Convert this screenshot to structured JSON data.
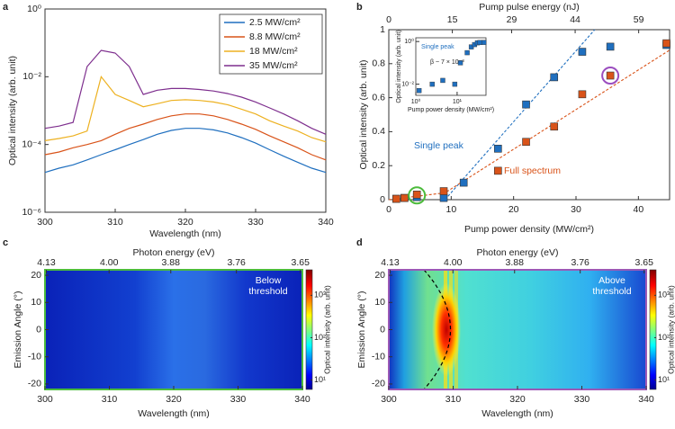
{
  "chart_data": [
    {
      "panel": "a",
      "type": "line",
      "xlabel": "Wavelength (nm)",
      "ylabel": "Optical intensity (arb. unit)",
      "x": [
        300,
        302,
        304,
        306,
        308,
        310,
        312,
        314,
        316,
        318,
        320,
        322,
        324,
        326,
        328,
        330,
        332,
        334,
        336,
        338,
        340
      ],
      "series": [
        {
          "name": "2.5 MW/cm²",
          "color": "#1f6fbf",
          "values": [
            1.5e-05,
            2e-05,
            2.5e-05,
            3.5e-05,
            5e-05,
            7e-05,
            0.0001,
            0.00014,
            0.0002,
            0.00026,
            0.0003,
            0.0003,
            0.00027,
            0.00022,
            0.00016,
            0.00011,
            7e-05,
            4.5e-05,
            3e-05,
            2e-05,
            1.5e-05
          ]
        },
        {
          "name": "8.8 MW/cm²",
          "color": "#d95319",
          "values": [
            5e-05,
            6e-05,
            8e-05,
            0.0001,
            0.00013,
            0.0002,
            0.0003,
            0.0004,
            0.00055,
            0.0007,
            0.0008,
            0.0008,
            0.0007,
            0.00055,
            0.0004,
            0.00028,
            0.00018,
            0.00012,
            8e-05,
            5e-05,
            3.5e-05
          ]
        },
        {
          "name": "18 MW/cm²",
          "color": "#edb120",
          "values": [
            0.00013,
            0.00015,
            0.00018,
            0.00025,
            0.01,
            0.003,
            0.002,
            0.0013,
            0.0016,
            0.002,
            0.0021,
            0.002,
            0.0018,
            0.0015,
            0.0011,
            0.0008,
            0.0005,
            0.00035,
            0.00025,
            0.00016,
            0.00012
          ]
        },
        {
          "name": "35 MW/cm²",
          "color": "#7e2f8e",
          "values": [
            0.0003,
            0.00035,
            0.00045,
            0.02,
            0.06,
            0.05,
            0.02,
            0.003,
            0.004,
            0.0045,
            0.0045,
            0.0042,
            0.0038,
            0.0032,
            0.0025,
            0.0018,
            0.0012,
            0.0008,
            0.0005,
            0.0003,
            0.0002
          ]
        }
      ],
      "xlim": [
        300,
        340
      ],
      "xticks": [
        300,
        310,
        320,
        330,
        340
      ],
      "ylim": [
        1e-06,
        1
      ],
      "log_y": true,
      "yticks": [
        {
          "value": 1e-06,
          "label": "10⁻⁶"
        },
        {
          "value": 0.0001,
          "label": "10⁻⁴"
        },
        {
          "value": 0.01,
          "label": "10⁻²"
        },
        {
          "value": 1,
          "label": "10⁰"
        }
      ],
      "legend": "upper-right"
    },
    {
      "panel": "b",
      "type": "scatter",
      "xlabel": "Pump power density (MW/cm²)",
      "ylabel": "Optical intensity (arb. unit)",
      "x2label": "Pump pulse energy (nJ)",
      "x": [
        1.2,
        2.5,
        4.5,
        8.8,
        12,
        17.5,
        22,
        26.5,
        31,
        35.5,
        44.5
      ],
      "series": [
        {
          "name": "Single peak",
          "color": "#1f6fbf",
          "values": [
            0.005,
            0.01,
            0.015,
            0.01,
            0.1,
            0.3,
            0.56,
            0.72,
            0.87,
            0.9,
            0.91
          ]
        },
        {
          "name": "Full spectrum",
          "color": "#d95319",
          "values": [
            0.005,
            0.01,
            0.03,
            0.05,
            null,
            0.17,
            0.34,
            0.43,
            0.62,
            0.73,
            0.92
          ]
        }
      ],
      "fits": [
        {
          "color": "#1f6fbf",
          "x": [
            9,
            33
          ],
          "values": [
            0,
            1
          ]
        },
        {
          "color": "#d95319",
          "x": [
            0,
            9,
            45
          ],
          "values": [
            0,
            0.04,
            0.88
          ]
        }
      ],
      "highlights": [
        {
          "x": 4.5,
          "y": 0.025,
          "color": "#4cbb3c"
        },
        {
          "x": 35.5,
          "y": 0.73,
          "color": "#9b4dbf"
        }
      ],
      "xlim": [
        0,
        45
      ],
      "xticks": [
        0,
        10,
        20,
        30,
        40
      ],
      "x2lim": [
        0,
        66.3
      ],
      "x2ticks": [
        0,
        15,
        29,
        44,
        59
      ],
      "ylim": [
        0,
        1
      ],
      "yticks": [
        0,
        0.2,
        0.4,
        0.6,
        0.8,
        1
      ],
      "inset": {
        "annotation": "β ~ 7 × 10⁻³",
        "xlabel": "Pump power density (MW/cm²)",
        "ylabel": "Optical intensity (arb. unit)",
        "xlim": [
          1,
          50
        ],
        "xticks": [
          {
            "value": 1,
            "label": "10⁰"
          },
          {
            "value": 10,
            "label": "10¹"
          }
        ],
        "ylim": [
          0.003,
          1.5
        ],
        "yticks": [
          {
            "value": 0.01,
            "label": "10⁻²"
          },
          {
            "value": 1,
            "label": "10⁰"
          }
        ]
      }
    },
    {
      "panel": "c",
      "type": "heatmap",
      "xlabel": "Wavelength (nm)",
      "ylabel": "Emission Angle (°)",
      "x2label": "Photon energy (eV)",
      "annotation": [
        "Below",
        "threshold"
      ],
      "frame_color": "#4cbb3c",
      "xlim": [
        300,
        340
      ],
      "xticks": [
        300,
        310,
        320,
        330,
        340
      ],
      "x2ticks": [
        4.13,
        {
          "value": 4,
          "label": "4.00"
        },
        3.88,
        3.76,
        3.65
      ],
      "ylim": [
        -22,
        22
      ],
      "yticks": [
        -20,
        -10,
        0,
        10,
        20
      ],
      "colorbar": {
        "label": "Optical intensity (arb. unit)",
        "lim": [
          6,
          4000
        ],
        "ticks": [
          {
            "value": 10,
            "label": "10¹"
          },
          {
            "value": 100,
            "label": "10²"
          },
          {
            "value": 1000,
            "label": "10³"
          }
        ]
      }
    },
    {
      "panel": "d",
      "type": "heatmap",
      "xlabel": "Wavelength (nm)",
      "ylabel": "Emission Angle (°)",
      "x2label": "Photon energy (eV)",
      "annotation": [
        "Above",
        "threshold"
      ],
      "frame_color": "#9b59b6",
      "xlim": [
        300,
        340
      ],
      "xticks": [
        300,
        310,
        320,
        330,
        340
      ],
      "x2ticks": [
        4.13,
        {
          "value": 4,
          "label": "4.00"
        },
        3.88,
        3.76,
        3.65
      ],
      "ylim": [
        -22,
        22
      ],
      "yticks": [
        -20,
        -10,
        0,
        10,
        20
      ],
      "colorbar": {
        "label": "Optical intensity (arb. unit)",
        "lim": [
          6,
          4000
        ],
        "ticks": [
          {
            "value": 10,
            "label": "10¹"
          },
          {
            "value": 100,
            "label": "10²"
          },
          {
            "value": 1000,
            "label": "10³"
          }
        ]
      }
    }
  ]
}
